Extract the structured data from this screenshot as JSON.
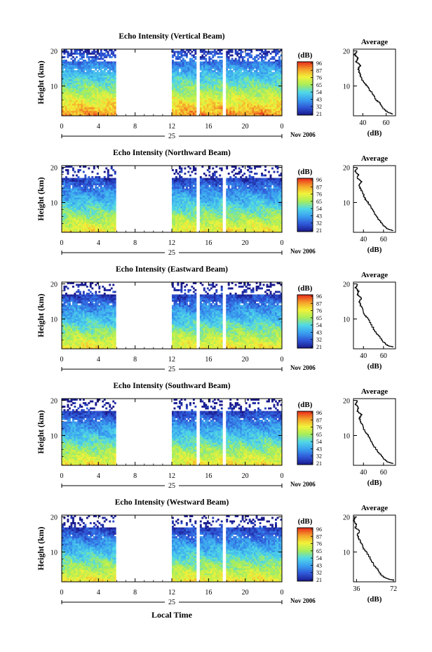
{
  "figure": {
    "xlabel": "Local Time",
    "date_label": "Nov 2006",
    "day_label": "25",
    "ylabel": "Height (km)",
    "avg_title": "Average",
    "avg_xlabel": "(dB)",
    "colorbar_title": "(dB)",
    "colormap": [
      "#1a1a8c",
      "#2f57d8",
      "#3aa0f0",
      "#50d8e8",
      "#a8ee5a",
      "#f2f23a",
      "#f5a02a",
      "#e8281a"
    ]
  },
  "chart_data": [
    {
      "type": "heatmap",
      "title": "Echo Intensity (Vertical Beam)",
      "xlabel": "",
      "ylabel": "Height (km)",
      "x_ticks": [
        "0",
        "4",
        "8",
        "12",
        "16",
        "20",
        "0"
      ],
      "xlim": [
        0,
        24
      ],
      "y_ticks": [
        "10",
        "20"
      ],
      "ylim": [
        1.5,
        20.5
      ],
      "no_data_intervals_hours": [
        [
          5.9,
          12.0
        ],
        [
          14.6,
          15.0
        ],
        [
          17.6,
          17.9
        ]
      ],
      "colorbar": {
        "label": "(dB)",
        "ticks": [
          "96",
          "87",
          "76",
          "65",
          "54",
          "43",
          "32",
          "21"
        ]
      },
      "average_profile": {
        "title": "Average",
        "xlabel": "(dB)",
        "x_ticks": [
          "40",
          "60"
        ],
        "xlim": [
          32,
          68
        ],
        "y_ticks": [
          "10",
          "20"
        ],
        "height_km": [
          2.0,
          2.5,
          3.5,
          5,
          6,
          8,
          10,
          11,
          13,
          14,
          15,
          16,
          17,
          18,
          19,
          20
        ],
        "db": [
          66,
          62,
          58,
          55,
          52,
          48,
          44,
          41,
          38,
          37,
          36,
          38,
          34,
          36,
          33,
          35
        ]
      }
    },
    {
      "type": "heatmap",
      "title": "Echo Intensity (Northward Beam)",
      "xlabel": "",
      "ylabel": "Height (km)",
      "x_ticks": [
        "0",
        "4",
        "8",
        "12",
        "16",
        "20",
        "0"
      ],
      "xlim": [
        0,
        24
      ],
      "y_ticks": [
        "10",
        "20"
      ],
      "ylim": [
        1.5,
        20.5
      ],
      "no_data_intervals_hours": [
        [
          5.9,
          12.0
        ],
        [
          14.6,
          15.0
        ],
        [
          17.6,
          17.9
        ]
      ],
      "colorbar": {
        "label": "(dB)",
        "ticks": [
          "96",
          "87",
          "76",
          "65",
          "54",
          "43",
          "32",
          "21"
        ]
      },
      "average_profile": {
        "title": "Average",
        "xlabel": "(dB)",
        "x_ticks": [
          "40",
          "60"
        ],
        "xlim": [
          30,
          72
        ],
        "y_ticks": [
          "10",
          "20"
        ],
        "height_km": [
          2.0,
          2.5,
          3.5,
          5,
          6,
          8,
          10,
          11,
          13,
          14,
          15,
          16,
          17,
          18,
          19,
          20
        ],
        "db": [
          70,
          64,
          60,
          56,
          53,
          49,
          45,
          42,
          39,
          37,
          36,
          38,
          34,
          35,
          32,
          34
        ]
      }
    },
    {
      "type": "heatmap",
      "title": "Echo Intensity (Eastward Beam)",
      "xlabel": "",
      "ylabel": "Height (km)",
      "x_ticks": [
        "0",
        "4",
        "8",
        "12",
        "16",
        "20",
        "0"
      ],
      "xlim": [
        0,
        24
      ],
      "y_ticks": [
        "10",
        "20"
      ],
      "ylim": [
        1.5,
        20.5
      ],
      "no_data_intervals_hours": [
        [
          5.9,
          12.0
        ],
        [
          14.6,
          15.0
        ],
        [
          17.6,
          17.9
        ]
      ],
      "colorbar": {
        "label": "(dB)",
        "ticks": [
          "96",
          "87",
          "76",
          "65",
          "54",
          "43",
          "32",
          "21"
        ]
      },
      "average_profile": {
        "title": "Average",
        "xlabel": "(dB)",
        "x_ticks": [
          "40",
          "60"
        ],
        "xlim": [
          30,
          72
        ],
        "y_ticks": [
          "10",
          "20"
        ],
        "height_km": [
          2.0,
          2.5,
          3.5,
          5,
          6,
          8,
          10,
          11,
          13,
          14,
          15,
          16,
          17,
          18,
          19,
          20
        ],
        "db": [
          70,
          64,
          60,
          56,
          53,
          49,
          45,
          42,
          39,
          37,
          36,
          38,
          34,
          35,
          32,
          34
        ]
      }
    },
    {
      "type": "heatmap",
      "title": "Echo Intensity (Southward Beam)",
      "xlabel": "",
      "ylabel": "Height (km)",
      "x_ticks": [
        "0",
        "4",
        "8",
        "12",
        "16",
        "20",
        "0"
      ],
      "xlim": [
        0,
        24
      ],
      "y_ticks": [
        "10",
        "20"
      ],
      "ylim": [
        1.5,
        20.5
      ],
      "no_data_intervals_hours": [
        [
          5.9,
          12.0
        ],
        [
          14.6,
          15.0
        ],
        [
          17.6,
          17.9
        ]
      ],
      "colorbar": {
        "label": "(dB)",
        "ticks": [
          "96",
          "87",
          "76",
          "65",
          "54",
          "43",
          "32",
          "21"
        ]
      },
      "average_profile": {
        "title": "Average",
        "xlabel": "(dB)",
        "x_ticks": [
          "40",
          "60"
        ],
        "xlim": [
          30,
          72
        ],
        "y_ticks": [
          "10",
          "20"
        ],
        "height_km": [
          2.0,
          2.5,
          3.5,
          5,
          6,
          8,
          10,
          11,
          13,
          14,
          15,
          16,
          17,
          18,
          19,
          20
        ],
        "db": [
          70,
          64,
          60,
          56,
          53,
          49,
          45,
          42,
          39,
          37,
          36,
          38,
          34,
          35,
          32,
          34
        ]
      }
    },
    {
      "type": "heatmap",
      "title": "Echo Intensity (Westward Beam)",
      "xlabel": "Local Time",
      "ylabel": "Height (km)",
      "x_ticks": [
        "0",
        "4",
        "8",
        "12",
        "16",
        "20",
        "0"
      ],
      "xlim": [
        0,
        24
      ],
      "y_ticks": [
        "10",
        "20"
      ],
      "ylim": [
        1.5,
        20.5
      ],
      "no_data_intervals_hours": [
        [
          5.9,
          12.0
        ],
        [
          14.6,
          15.0
        ],
        [
          17.6,
          17.9
        ]
      ],
      "colorbar": {
        "label": "(dB)",
        "ticks": [
          "96",
          "87",
          "76",
          "65",
          "54",
          "43",
          "32",
          "21"
        ]
      },
      "average_profile": {
        "title": "Average",
        "xlabel": "(dB)",
        "x_ticks": [
          "36",
          "72"
        ],
        "xlim": [
          33,
          74
        ],
        "y_ticks": [
          "10",
          "20"
        ],
        "height_km": [
          2.0,
          2.5,
          3.5,
          5,
          6,
          8,
          10,
          11,
          13,
          14,
          15,
          16,
          17,
          18,
          19,
          20
        ],
        "db": [
          72,
          65,
          60,
          57,
          54,
          50,
          46,
          43,
          40,
          38,
          37,
          39,
          35,
          36,
          33,
          35
        ]
      }
    }
  ]
}
